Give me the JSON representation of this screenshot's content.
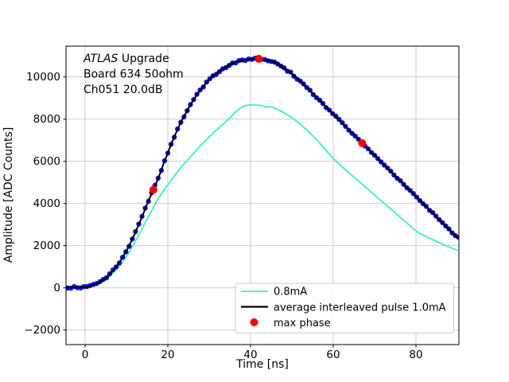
{
  "chart": {
    "xlabel": "Time [ns]",
    "ylabel": "Amplitude [ADC Counts]"
  },
  "annotation": {
    "line1_italic": "ATLAS",
    "line1_rest": " Upgrade",
    "line2": " Board 634 50ohm",
    "line3": "Ch051 20.0dB"
  },
  "legend": {
    "entries": [
      {
        "label": "0.8mA",
        "marker": "line",
        "color": "#3fedc0"
      },
      {
        "label": "average interleaved pulse 1.0mA",
        "marker": "line",
        "color": "#000000"
      },
      {
        "label": "max phase",
        "marker": "dot",
        "color": "#ff0000"
      }
    ]
  },
  "colors": {
    "grid": "#c6c6c6",
    "spine": "#000000",
    "dot_marker": "#1111dd",
    "max_phase": "#ff0000",
    "pulse_08": "#3fedc0",
    "pulse_10_line": "#000000",
    "background": "#ffffff"
  },
  "chart_data": {
    "type": "line",
    "title": "",
    "xlabel": "Time [ns]",
    "ylabel": "Amplitude [ADC Counts]",
    "xlim": [
      -4.62,
      90.38
    ],
    "ylim": [
      -2690,
      11460
    ],
    "xticks": [
      0,
      20,
      40,
      60,
      80
    ],
    "yticks": [
      -2000,
      0,
      2000,
      4000,
      6000,
      8000,
      10000
    ],
    "grid": true,
    "legend_position": "lower right inside",
    "series": [
      {
        "name": "0.8mA",
        "style": "line",
        "color": "#3fedc0",
        "points": [
          [
            -5,
            10
          ],
          [
            -3,
            15
          ],
          [
            -1,
            25
          ],
          [
            0,
            35
          ],
          [
            1,
            60
          ],
          [
            2,
            100
          ],
          [
            3,
            170
          ],
          [
            4,
            270
          ],
          [
            5,
            400
          ],
          [
            6,
            560
          ],
          [
            7,
            750
          ],
          [
            8,
            970
          ],
          [
            9,
            1220
          ],
          [
            10,
            1500
          ],
          [
            11,
            1810
          ],
          [
            12,
            2150
          ],
          [
            13,
            2520
          ],
          [
            14,
            2890
          ],
          [
            15,
            3260
          ],
          [
            16,
            3630
          ],
          [
            17,
            3990
          ],
          [
            18,
            4330
          ],
          [
            19,
            4620
          ],
          [
            20,
            4880
          ],
          [
            21,
            5160
          ],
          [
            22,
            5420
          ],
          [
            23,
            5660
          ],
          [
            24,
            5890
          ],
          [
            25,
            6110
          ],
          [
            26,
            6330
          ],
          [
            27,
            6550
          ],
          [
            28,
            6760
          ],
          [
            29,
            6960
          ],
          [
            30,
            7160
          ],
          [
            31,
            7350
          ],
          [
            32,
            7530
          ],
          [
            33,
            7700
          ],
          [
            34,
            7870
          ],
          [
            35,
            8060
          ],
          [
            36,
            8260
          ],
          [
            37,
            8440
          ],
          [
            38,
            8580
          ],
          [
            39,
            8650
          ],
          [
            40,
            8670
          ],
          [
            41,
            8670
          ],
          [
            42,
            8655
          ],
          [
            43,
            8625
          ],
          [
            44,
            8580
          ],
          [
            45,
            8580
          ],
          [
            46,
            8510
          ],
          [
            47,
            8420
          ],
          [
            48,
            8310
          ],
          [
            49,
            8190
          ],
          [
            50,
            8060
          ],
          [
            51,
            7920
          ],
          [
            52,
            7760
          ],
          [
            53,
            7590
          ],
          [
            54,
            7410
          ],
          [
            55,
            7220
          ],
          [
            56,
            7020
          ],
          [
            57,
            6800
          ],
          [
            58,
            6570
          ],
          [
            59,
            6350
          ],
          [
            60,
            6130
          ],
          [
            62,
            5760
          ],
          [
            64,
            5420
          ],
          [
            66,
            5080
          ],
          [
            68,
            4740
          ],
          [
            70,
            4400
          ],
          [
            72,
            4060
          ],
          [
            74,
            3720
          ],
          [
            76,
            3380
          ],
          [
            78,
            3040
          ],
          [
            80,
            2700
          ],
          [
            82,
            2480
          ],
          [
            84,
            2290
          ],
          [
            86,
            2110
          ],
          [
            88,
            1940
          ],
          [
            90,
            1780
          ]
        ]
      },
      {
        "name": "average interleaved pulse 1.0mA",
        "style": "line+dots",
        "color": "#000000",
        "marker_color": "#1111dd",
        "dot_interval_ns": 0.78125,
        "points": [
          [
            -5,
            20
          ],
          [
            -3,
            25
          ],
          [
            -1,
            30
          ],
          [
            0,
            40
          ],
          [
            1,
            70
          ],
          [
            2,
            125
          ],
          [
            3,
            210
          ],
          [
            4,
            330
          ],
          [
            5,
            480
          ],
          [
            6,
            660
          ],
          [
            7,
            880
          ],
          [
            8,
            1130
          ],
          [
            9,
            1420
          ],
          [
            10,
            1760
          ],
          [
            11,
            2140
          ],
          [
            12,
            2560
          ],
          [
            13,
            3010
          ],
          [
            14,
            3480
          ],
          [
            15,
            3980
          ],
          [
            16.5,
            4650
          ],
          [
            18,
            5350
          ],
          [
            19,
            5900
          ],
          [
            20,
            6400
          ],
          [
            21,
            6900
          ],
          [
            22,
            7350
          ],
          [
            23,
            7780
          ],
          [
            24,
            8160
          ],
          [
            25,
            8520
          ],
          [
            26,
            8850
          ],
          [
            27,
            9150
          ],
          [
            28,
            9420
          ],
          [
            29,
            9650
          ],
          [
            30,
            9860
          ],
          [
            31,
            10040
          ],
          [
            32,
            10200
          ],
          [
            33,
            10340
          ],
          [
            34,
            10470
          ],
          [
            35,
            10580
          ],
          [
            36,
            10670
          ],
          [
            37,
            10740
          ],
          [
            38,
            10790
          ],
          [
            39,
            10820
          ],
          [
            40,
            10840
          ],
          [
            41,
            10855
          ],
          [
            42,
            10860
          ],
          [
            43,
            10845
          ],
          [
            44,
            10800
          ],
          [
            46,
            10660
          ],
          [
            48,
            10440
          ],
          [
            50,
            10150
          ],
          [
            52,
            9800
          ],
          [
            54,
            9420
          ],
          [
            56,
            9030
          ],
          [
            58,
            8630
          ],
          [
            60,
            8230
          ],
          [
            62,
            7840
          ],
          [
            64,
            7450
          ],
          [
            66,
            7060
          ],
          [
            67,
            6860
          ],
          [
            68,
            6670
          ],
          [
            70,
            6280
          ],
          [
            72,
            5890
          ],
          [
            74,
            5500
          ],
          [
            76,
            5110
          ],
          [
            78,
            4720
          ],
          [
            80,
            4330
          ],
          [
            82,
            3940
          ],
          [
            84,
            3550
          ],
          [
            86,
            3160
          ],
          [
            88,
            2770
          ],
          [
            90,
            2380
          ]
        ]
      },
      {
        "name": "max phase",
        "style": "scatter",
        "color": "#ff0000",
        "points": [
          [
            16.5,
            4650
          ],
          [
            42,
            10860
          ],
          [
            67,
            6860
          ]
        ]
      }
    ]
  }
}
